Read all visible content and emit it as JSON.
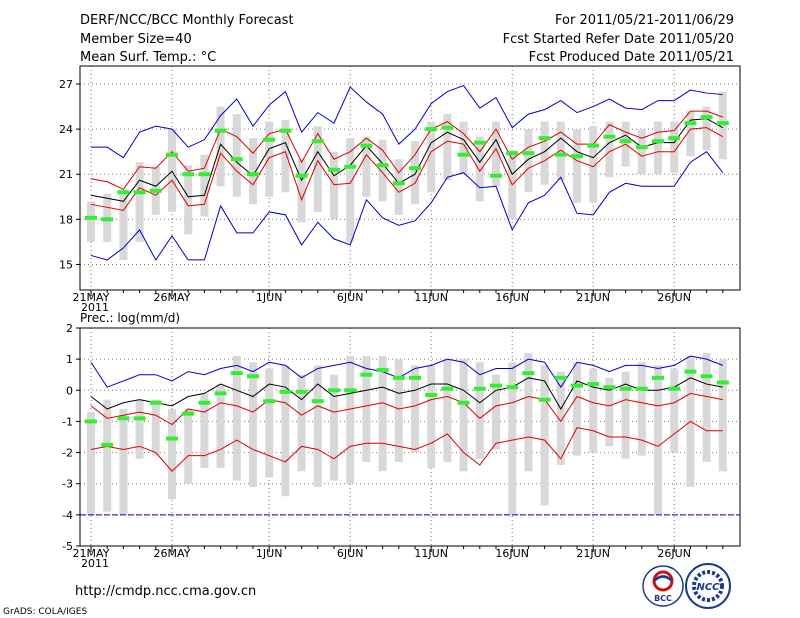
{
  "header": {
    "title": "DERF/NCC/BCC Monthly Forecast",
    "member_size": "Member Size=40",
    "top_variable": "Mean Surf. Temp.: °C",
    "forecast_period": "For 2011/05/21-2011/06/29",
    "started_date": "Fcst Started Refer Date 2011/05/20",
    "produced_date": "Fcst Produced Date 2011/05/21"
  },
  "footer": {
    "url": "http://cmdp.ncc.cma.gov.cn",
    "credit": "GrADS: COLA/IGES",
    "logo_bcc": "BCC",
    "logo_ncc": "NCC"
  },
  "colors": {
    "max_min": "#0000cc",
    "quartile": "#dd0000",
    "median": "#000000",
    "observed": "#33ee33",
    "box": "#d8d8d8",
    "floor": "#0000cc"
  },
  "chart_data": [
    {
      "type": "line",
      "title": "Mean Surf. Temp.: °C",
      "ylim": [
        13.3,
        28.2
      ],
      "yticks": [
        15,
        18,
        21,
        24,
        27
      ],
      "x_tick_days": [
        0,
        5,
        11,
        16,
        21,
        26,
        31,
        36
      ],
      "x_tick_labels": [
        "21MAY",
        "26MAY",
        "1JUN",
        "6JUN",
        "11JUN",
        "16JUN",
        "21JUN",
        "26JUN"
      ],
      "x_year_label": "2011",
      "grid": true,
      "days": 40,
      "series": [
        {
          "name": "max",
          "color": "#0000cc",
          "values": [
            22.8,
            22.8,
            22.1,
            23.8,
            24.2,
            24.0,
            22.8,
            23.3,
            24.9,
            26.0,
            24.2,
            25.6,
            26.5,
            23.8,
            25.1,
            24.4,
            26.8,
            25.8,
            25.0,
            23.0,
            24.0,
            25.7,
            26.5,
            26.9,
            25.4,
            26.1,
            24.1,
            25.0,
            25.3,
            25.9,
            25.1,
            25.5,
            26.0,
            25.4,
            25.3,
            25.9,
            25.9,
            26.6,
            26.4,
            26.3
          ]
        },
        {
          "name": "p75",
          "color": "#dd0000",
          "values": [
            20.7,
            20.5,
            20.0,
            21.5,
            21.4,
            22.5,
            21.2,
            21.4,
            24.0,
            23.5,
            22.4,
            23.7,
            24.0,
            21.8,
            23.7,
            22.0,
            22.5,
            23.4,
            22.6,
            21.1,
            22.3,
            24.0,
            24.5,
            23.7,
            22.5,
            24.0,
            22.0,
            22.8,
            23.2,
            23.8,
            23.0,
            23.0,
            24.3,
            23.8,
            23.4,
            23.8,
            23.9,
            25.2,
            25.2,
            24.8
          ]
        },
        {
          "name": "median",
          "color": "#000000",
          "values": [
            19.6,
            19.4,
            19.2,
            20.6,
            20.2,
            21.2,
            19.5,
            19.6,
            23.0,
            21.8,
            20.9,
            22.7,
            23.1,
            20.6,
            22.5,
            20.9,
            21.6,
            22.9,
            21.7,
            20.4,
            21.0,
            23.1,
            23.8,
            23.3,
            21.8,
            23.3,
            21.0,
            22.0,
            22.5,
            23.4,
            22.5,
            22.1,
            23.1,
            23.6,
            22.8,
            23.1,
            23.1,
            24.6,
            24.7,
            24.1
          ]
        },
        {
          "name": "p25",
          "color": "#dd0000",
          "values": [
            19.0,
            18.8,
            18.6,
            20.1,
            19.6,
            20.6,
            18.9,
            19.0,
            22.4,
            21.2,
            20.3,
            22.1,
            22.5,
            19.3,
            21.9,
            20.3,
            20.4,
            22.3,
            21.1,
            19.8,
            20.4,
            22.5,
            23.2,
            23.0,
            21.2,
            22.7,
            20.3,
            21.4,
            21.9,
            22.6,
            21.9,
            21.5,
            22.5,
            23.0,
            22.2,
            22.5,
            22.5,
            24.0,
            24.1,
            23.5
          ]
        },
        {
          "name": "min",
          "color": "#0000cc",
          "values": [
            15.6,
            15.3,
            16.1,
            17.3,
            15.3,
            16.9,
            15.3,
            15.3,
            18.9,
            17.1,
            17.1,
            18.5,
            18.3,
            16.3,
            17.8,
            16.7,
            16.3,
            19.3,
            18.1,
            17.6,
            17.9,
            19.1,
            20.8,
            21.1,
            20.1,
            20.2,
            17.3,
            19.1,
            19.6,
            20.8,
            18.4,
            18.3,
            19.8,
            20.4,
            20.2,
            20.2,
            20.2,
            21.8,
            22.5,
            21.1
          ]
        },
        {
          "name": "observed",
          "color": "#33ee33",
          "values": [
            18.1,
            18.0,
            19.8,
            19.8,
            19.9,
            22.3,
            21.0,
            21.0,
            23.9,
            22.0,
            21.0,
            23.3,
            23.9,
            20.9,
            23.2,
            21.3,
            21.5,
            22.9,
            21.6,
            20.4,
            21.4,
            24.0,
            24.1,
            22.3,
            23.1,
            20.9,
            22.4,
            22.4,
            23.4,
            22.3,
            22.2,
            22.9,
            23.5,
            23.2,
            22.8,
            23.2,
            23.4,
            24.4,
            24.8,
            24.4
          ]
        }
      ],
      "box_low": [
        16.5,
        16.5,
        15.3,
        16.5,
        18.3,
        18.5,
        17.0,
        18.2,
        20.2,
        19.5,
        19.0,
        19.5,
        19.8,
        17.8,
        18.5,
        18.0,
        16.5,
        19.5,
        19.2,
        18.3,
        19.0,
        19.8,
        20.6,
        21.0,
        19.2,
        20.2,
        18.0,
        19.8,
        20.3,
        20.6,
        19.1,
        19.1,
        20.8,
        21.5,
        21.0,
        21.0,
        21.1,
        22.2,
        22.6,
        22.0
      ],
      "box_high": [
        19.2,
        19.7,
        20.0,
        21.8,
        21.5,
        24.0,
        21.6,
        22.3,
        25.5,
        25.0,
        23.4,
        24.5,
        24.6,
        22.0,
        24.2,
        22.5,
        23.4,
        23.5,
        23.3,
        22.0,
        23.2,
        24.5,
        25.0,
        24.5,
        23.5,
        24.5,
        22.6,
        24.0,
        24.5,
        24.5,
        24.0,
        24.2,
        24.5,
        24.5,
        24.0,
        24.5,
        24.5,
        25.2,
        25.5,
        26.5
      ]
    },
    {
      "type": "line",
      "title": "Prec.: log(mm/d)",
      "ylim": [
        -5,
        2
      ],
      "yticks": [
        -5,
        -4,
        -3,
        -2,
        -1,
        0,
        1,
        2
      ],
      "x_tick_days": [
        0,
        5,
        11,
        16,
        21,
        26,
        31,
        36
      ],
      "x_tick_labels": [
        "21MAY",
        "26MAY",
        "1JUN",
        "6JUN",
        "11JUN",
        "16JUN",
        "21JUN",
        "26JUN"
      ],
      "x_year_label": "2011",
      "grid": true,
      "days": 40,
      "floor_value": -4,
      "series": [
        {
          "name": "max",
          "color": "#0000cc",
          "values": [
            0.9,
            0.1,
            0.3,
            0.5,
            0.5,
            0.3,
            0.6,
            0.5,
            0.7,
            0.8,
            0.6,
            0.9,
            0.8,
            0.4,
            0.7,
            0.8,
            0.9,
            0.7,
            0.6,
            0.4,
            0.7,
            0.8,
            1.0,
            0.9,
            0.5,
            0.7,
            0.7,
            1.0,
            0.9,
            0.1,
            0.9,
            0.8,
            0.6,
            0.8,
            0.8,
            0.7,
            0.8,
            1.1,
            1.0,
            0.8
          ]
        },
        {
          "name": "p75",
          "color": "#000000",
          "values": [
            -0.2,
            -0.6,
            -0.4,
            -0.3,
            -0.4,
            -0.5,
            -0.2,
            -0.1,
            0.2,
            0.0,
            -0.2,
            0.2,
            0.1,
            -0.3,
            0.2,
            -0.2,
            -0.1,
            0.0,
            0.1,
            -0.1,
            0.0,
            0.2,
            0.2,
            0.0,
            -0.4,
            0.0,
            0.1,
            0.4,
            0.3,
            -0.6,
            0.3,
            0.1,
            0.0,
            0.2,
            0.0,
            0.0,
            0.1,
            0.4,
            0.2,
            0.1
          ]
        },
        {
          "name": "median",
          "color": "#dd0000",
          "values": [
            -0.5,
            -0.9,
            -0.8,
            -0.7,
            -0.8,
            -1.1,
            -0.6,
            -0.7,
            -0.4,
            -0.5,
            -0.7,
            -0.3,
            -0.4,
            -0.8,
            -0.5,
            -0.7,
            -0.6,
            -0.5,
            -0.4,
            -0.6,
            -0.5,
            -0.3,
            -0.2,
            -0.4,
            -0.9,
            -0.5,
            -0.4,
            -0.2,
            -0.3,
            -1.0,
            -0.2,
            -0.4,
            -0.5,
            -0.3,
            -0.4,
            -0.5,
            -0.4,
            -0.1,
            -0.2,
            -0.3
          ]
        },
        {
          "name": "p25",
          "color": "#dd0000",
          "values": [
            -1.9,
            -1.8,
            -1.9,
            -1.8,
            -2.0,
            -2.6,
            -2.1,
            -2.1,
            -1.9,
            -1.6,
            -1.9,
            -2.1,
            -2.3,
            -1.8,
            -1.9,
            -2.2,
            -1.8,
            -1.7,
            -1.7,
            -1.8,
            -1.9,
            -1.7,
            -1.4,
            -2.0,
            -2.4,
            -1.7,
            -1.6,
            -1.5,
            -1.6,
            -2.2,
            -1.2,
            -1.3,
            -1.5,
            -1.5,
            -1.6,
            -1.8,
            -1.4,
            -1.0,
            -1.3,
            -1.3
          ]
        },
        {
          "name": "min",
          "color": "#0000cc",
          "values": [
            -4,
            -4,
            -4,
            -4,
            -4,
            -4,
            -4,
            -4,
            -4,
            -4,
            -4,
            -4,
            -4,
            -4,
            -4,
            -4,
            -4,
            -4,
            -4,
            -4,
            -4,
            -4,
            -4,
            -4,
            -4,
            -4,
            -4,
            -4,
            -4,
            -4,
            -4,
            -4,
            -4,
            -4,
            -4,
            -4,
            -4,
            -4,
            -4,
            -4
          ]
        },
        {
          "name": "observed",
          "color": "#33ee33",
          "values": [
            -1.0,
            -1.75,
            -0.9,
            -0.9,
            -0.4,
            -1.55,
            -0.75,
            -0.4,
            -0.1,
            0.55,
            0.45,
            -0.35,
            -0.05,
            -0.05,
            -0.35,
            0.0,
            0.0,
            0.5,
            0.65,
            0.4,
            0.4,
            -0.15,
            0.05,
            -0.4,
            0.05,
            0.15,
            0.1,
            0.55,
            -0.3,
            0.4,
            0.15,
            0.2,
            0.1,
            0.05,
            0.05,
            0.4,
            0.05,
            0.6,
            0.45,
            0.25
          ]
        }
      ],
      "box_low": [
        -4.0,
        -3.9,
        -4.0,
        -2.2,
        -2.1,
        -3.5,
        -3.0,
        -2.5,
        -2.5,
        -2.9,
        -3.1,
        -2.8,
        -3.4,
        -2.6,
        -3.1,
        -2.9,
        -3.0,
        -2.3,
        -2.6,
        -2.3,
        -2.0,
        -2.5,
        -2.3,
        -2.6,
        -2.2,
        -1.9,
        -4.0,
        -2.6,
        -3.7,
        -2.4,
        -2.1,
        -2.0,
        -1.8,
        -2.2,
        -2.1,
        -4.0,
        -2.0,
        -3.1,
        -2.3,
        -2.6
      ],
      "box_high": [
        -0.7,
        -0.3,
        -0.6,
        -0.3,
        -0.3,
        -0.6,
        -0.6,
        -0.1,
        0.2,
        1.1,
        0.9,
        0.7,
        0.8,
        0.5,
        0.8,
        0.5,
        1.1,
        1.1,
        1.1,
        1.0,
        0.8,
        0.8,
        1.0,
        1.0,
        0.9,
        0.5,
        0.9,
        1.2,
        0.8,
        0.6,
        0.9,
        0.7,
        0.4,
        0.6,
        0.9,
        0.8,
        0.7,
        1.1,
        1.2,
        1.0
      ]
    }
  ]
}
